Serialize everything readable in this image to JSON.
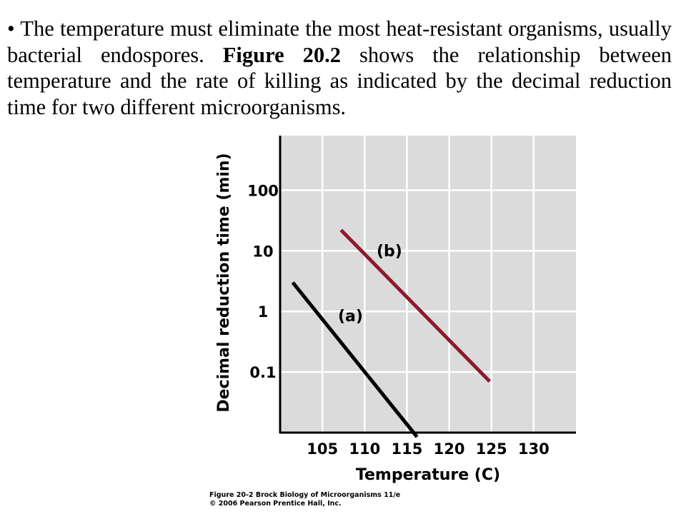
{
  "slide": {
    "bullet": "•",
    "text_before": "The temperature must eliminate the most heat-resistant organisms, usually bacterial endospores.",
    "figure_ref": "Figure 20.2",
    "text_after": "shows the relationship between temperature and the rate of killing as indicated by the decimal reduction time for two different microorganisms."
  },
  "caption": {
    "line1": "Figure 20-2  Brock Biology of Microorganisms 11/e",
    "line2": "© 2006 Pearson Prentice Hall, Inc."
  },
  "colors": {
    "plot_background": "#dcdbdc",
    "grid": "#ffffff",
    "axis": "#000000",
    "series_a": "#000000",
    "series_b": "#8b1a2b"
  },
  "chart_data": {
    "type": "line",
    "title": "",
    "xlabel": "Temperature (C)",
    "ylabel": "Decimal reduction time (min)",
    "xlim": [
      100,
      135
    ],
    "ylim_log10": [
      -2.0,
      2.9
    ],
    "y_scale": "log",
    "grid": true,
    "x_ticks": [
      105,
      110,
      115,
      120,
      125,
      130
    ],
    "x_tick_labels": [
      "105",
      "110",
      "115",
      "120",
      "125",
      "130"
    ],
    "y_ticks": [
      100,
      10,
      1,
      0.1
    ],
    "y_tick_labels": [
      "100",
      "10",
      "1",
      "0.1"
    ],
    "series": [
      {
        "name": "(a)",
        "points": [
          [
            101.5,
            3
          ],
          [
            116.2,
            0.0085
          ]
        ]
      },
      {
        "name": "(b)",
        "points": [
          [
            107.2,
            22
          ],
          [
            124.8,
            0.07
          ]
        ]
      }
    ]
  }
}
